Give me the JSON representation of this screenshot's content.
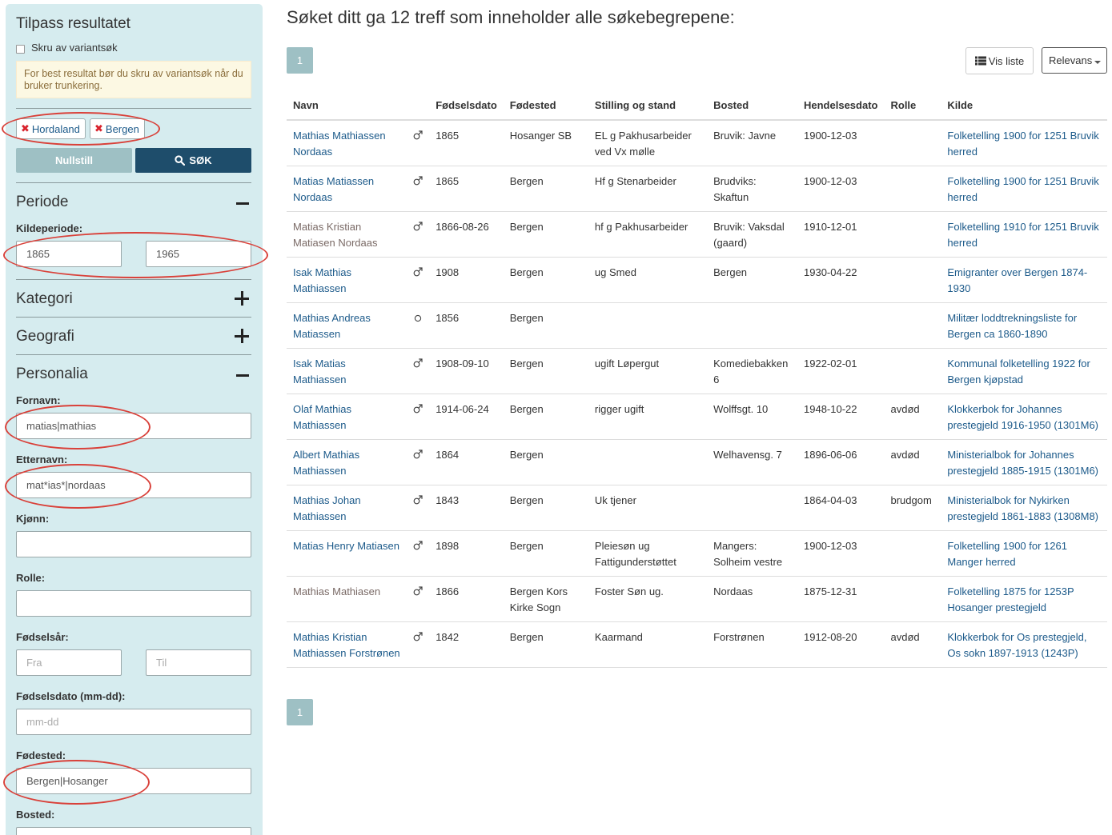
{
  "sidebar": {
    "title": "Tilpass resultatet",
    "variant_label": "Skru av variantsøk",
    "warning": "For best resultat bør du skru av variantsøk når du bruker trunkering.",
    "chips": [
      "Hordaland",
      "Bergen"
    ],
    "reset_label": "Nullstill",
    "search_label": "SØK",
    "periode": {
      "heading": "Periode",
      "kildeperiode_label": "Kildeperiode:",
      "from": "1865",
      "to": "1965"
    },
    "kategori": {
      "heading": "Kategori"
    },
    "geografi": {
      "heading": "Geografi"
    },
    "personalia": {
      "heading": "Personalia",
      "fornavn_label": "Fornavn:",
      "fornavn_value": "matias|mathias",
      "etternavn_label": "Etternavn:",
      "etternavn_value": "mat*ias*|nordaas",
      "kjonn_label": "Kjønn:",
      "kjonn_value": "",
      "rolle_label": "Rolle:",
      "rolle_value": "",
      "fodselsar_label": "Fødselsår:",
      "fodselsar_fra_placeholder": "Fra",
      "fodselsar_til_placeholder": "Til",
      "fodselsdato_label": "Fødselsdato (mm-dd):",
      "fodselsdato_placeholder": "mm-dd",
      "fodested_label": "Fødested:",
      "fodested_value": "Bergen|Hosanger",
      "bosted_label": "Bosted:"
    }
  },
  "main": {
    "heading": "Søket ditt ga 12 treff som inneholder alle søkebegrepene:",
    "page": "1",
    "vis_liste_label": "Vis liste",
    "sort_label": "Relevans",
    "columns": [
      "Navn",
      "",
      "Fødselsdato",
      "Fødested",
      "Stilling og stand",
      "Bosted",
      "Hendelsesdato",
      "Rolle",
      "Kilde"
    ],
    "rows": [
      {
        "name": "Mathias Mathiassen Nordaas",
        "visited": false,
        "sex": "male",
        "birth": "1865",
        "birthplace": "Hosanger SB",
        "occupation": "EL g Pakhusarbeider ved Vx mølle",
        "residence": "Bruvik: Javne",
        "eventdate": "1900-12-03",
        "role": "",
        "source": "Folketelling 1900 for 1251 Bruvik herred"
      },
      {
        "name": "Matias Matiassen Nordaas",
        "visited": false,
        "sex": "male",
        "birth": "1865",
        "birthplace": "Bergen",
        "occupation": "Hf g Stenarbeider",
        "residence": "Brudviks: Skaftun",
        "eventdate": "1900-12-03",
        "role": "",
        "source": "Folketelling 1900 for 1251 Bruvik herred"
      },
      {
        "name": "Matias Kristian Matiasen Nordaas",
        "visited": true,
        "sex": "male",
        "birth": "1866-08-26",
        "birthplace": "Bergen",
        "occupation": "hf g Pakhusarbeider",
        "residence": "Bruvik: Vaksdal (gaard)",
        "eventdate": "1910-12-01",
        "role": "",
        "source": "Folketelling 1910 for 1251 Bruvik herred"
      },
      {
        "name": "Isak Mathias Mathiassen",
        "visited": false,
        "sex": "male",
        "birth": "1908",
        "birthplace": "Bergen",
        "occupation": "ug Smed",
        "residence": "Bergen",
        "eventdate": "1930-04-22",
        "role": "",
        "source": "Emigranter over Bergen 1874-1930"
      },
      {
        "name": "Mathias Andreas Matiassen",
        "visited": false,
        "sex": "unknown",
        "birth": "1856",
        "birthplace": "Bergen",
        "occupation": "",
        "residence": "",
        "eventdate": "",
        "role": "",
        "source": "Militær loddtrekningsliste for Bergen ca 1860-1890"
      },
      {
        "name": "Isak Matias Mathiassen",
        "visited": false,
        "sex": "male",
        "birth": "1908-09-10",
        "birthplace": "Bergen",
        "occupation": "ugift Løpergut",
        "residence": "Komediebakken 6",
        "eventdate": "1922-02-01",
        "role": "",
        "source": "Kommunal folketelling 1922 for Bergen kjøpstad"
      },
      {
        "name": "Olaf Mathias Mathiassen",
        "visited": false,
        "sex": "male",
        "birth": "1914-06-24",
        "birthplace": "Bergen",
        "occupation": "rigger ugift",
        "residence": "Wolffsgt. 10",
        "eventdate": "1948-10-22",
        "role": "avdød",
        "source": "Klokkerbok for Johannes prestegjeld 1916-1950 (1301M6)"
      },
      {
        "name": "Albert Mathias Mathiassen",
        "visited": false,
        "sex": "male",
        "birth": "1864",
        "birthplace": "Bergen",
        "occupation": "",
        "residence": "Welhavensg. 7",
        "eventdate": "1896-06-06",
        "role": "avdød",
        "source": "Ministerialbok for Johannes prestegjeld 1885-1915 (1301M6)"
      },
      {
        "name": "Mathias Johan Mathiassen",
        "visited": false,
        "sex": "male",
        "birth": "1843",
        "birthplace": "Bergen",
        "occupation": "Uk tjener",
        "residence": "",
        "eventdate": "1864-04-03",
        "role": "brudgom",
        "source": "Ministerialbok for Nykirken prestegjeld 1861-1883 (1308M8)"
      },
      {
        "name": "Matias Henry Matiasen",
        "visited": false,
        "sex": "male",
        "birth": "1898",
        "birthplace": "Bergen",
        "occupation": "Pleiesøn ug Fattigunderstøttet",
        "residence": "Mangers: Solheim vestre",
        "eventdate": "1900-12-03",
        "role": "",
        "source": "Folketelling 1900 for 1261 Manger herred"
      },
      {
        "name": "Mathias Mathiasen",
        "visited": true,
        "sex": "male",
        "birth": "1866",
        "birthplace": "Bergen Kors Kirke Sogn",
        "occupation": "Foster Søn ug.",
        "residence": "Nordaas",
        "eventdate": "1875-12-31",
        "role": "",
        "source": "Folketelling 1875 for 1253P Hosanger prestegjeld"
      },
      {
        "name": "Mathias Kristian Mathiassen Forstrønen",
        "visited": false,
        "sex": "male",
        "birth": "1842",
        "birthplace": "Bergen",
        "occupation": "Kaarmand",
        "residence": "Forstrønen",
        "eventdate": "1912-08-20",
        "role": "avdød",
        "source": "Klokkerbok for Os prestegjeld, Os sokn 1897-1913 (1243P)"
      }
    ]
  }
}
